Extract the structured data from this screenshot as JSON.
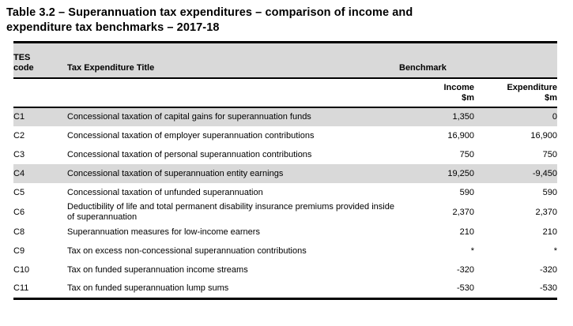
{
  "title": {
    "line1": "Table 3.2 – Superannuation tax expenditures – comparison of income and",
    "line2": "expenditure tax benchmarks – 2017-18"
  },
  "table": {
    "header": {
      "code_col": "TES\ncode",
      "title_col": "Tax Expenditure Title",
      "benchmark_group": "Benchmark",
      "income_col": "Income\n$m",
      "expenditure_col": "Expenditure\n$m"
    },
    "rows": [
      {
        "code": "C1",
        "title": "Concessional taxation of capital gains for superannuation funds",
        "income": "1,350",
        "expenditure": "0",
        "shaded": true
      },
      {
        "code": "C2",
        "title": "Concessional taxation of employer superannuation contributions",
        "income": "16,900",
        "expenditure": "16,900",
        "shaded": false
      },
      {
        "code": "C3",
        "title": "Concessional taxation of personal superannuation contributions",
        "income": "750",
        "expenditure": "750",
        "shaded": false
      },
      {
        "code": "C4",
        "title": "Concessional taxation of superannuation entity earnings",
        "income": "19,250",
        "expenditure": "-9,450",
        "shaded": true
      },
      {
        "code": "C5",
        "title": "Concessional taxation of unfunded superannuation",
        "income": "590",
        "expenditure": "590",
        "shaded": false
      },
      {
        "code": "C6",
        "title": "Deductibility of life and total permanent disability insurance premiums provided inside of superannuation",
        "income": "2,370",
        "expenditure": "2,370",
        "shaded": false
      },
      {
        "code": "C8",
        "title": "Superannuation measures for low-income earners",
        "income": "210",
        "expenditure": "210",
        "shaded": false
      },
      {
        "code": "C9",
        "title": "Tax on excess non-concessional superannuation contributions",
        "income": "*",
        "expenditure": "*",
        "shaded": false
      },
      {
        "code": "C10",
        "title": "Tax on funded superannuation income streams",
        "income": "-320",
        "expenditure": "-320",
        "shaded": false
      },
      {
        "code": "C11",
        "title": "Tax on funded superannuation lump sums",
        "income": "-530",
        "expenditure": "-530",
        "shaded": false
      }
    ]
  },
  "colors": {
    "row_shade": "#d9d9d9",
    "rule": "#000000",
    "text": "#000000"
  }
}
